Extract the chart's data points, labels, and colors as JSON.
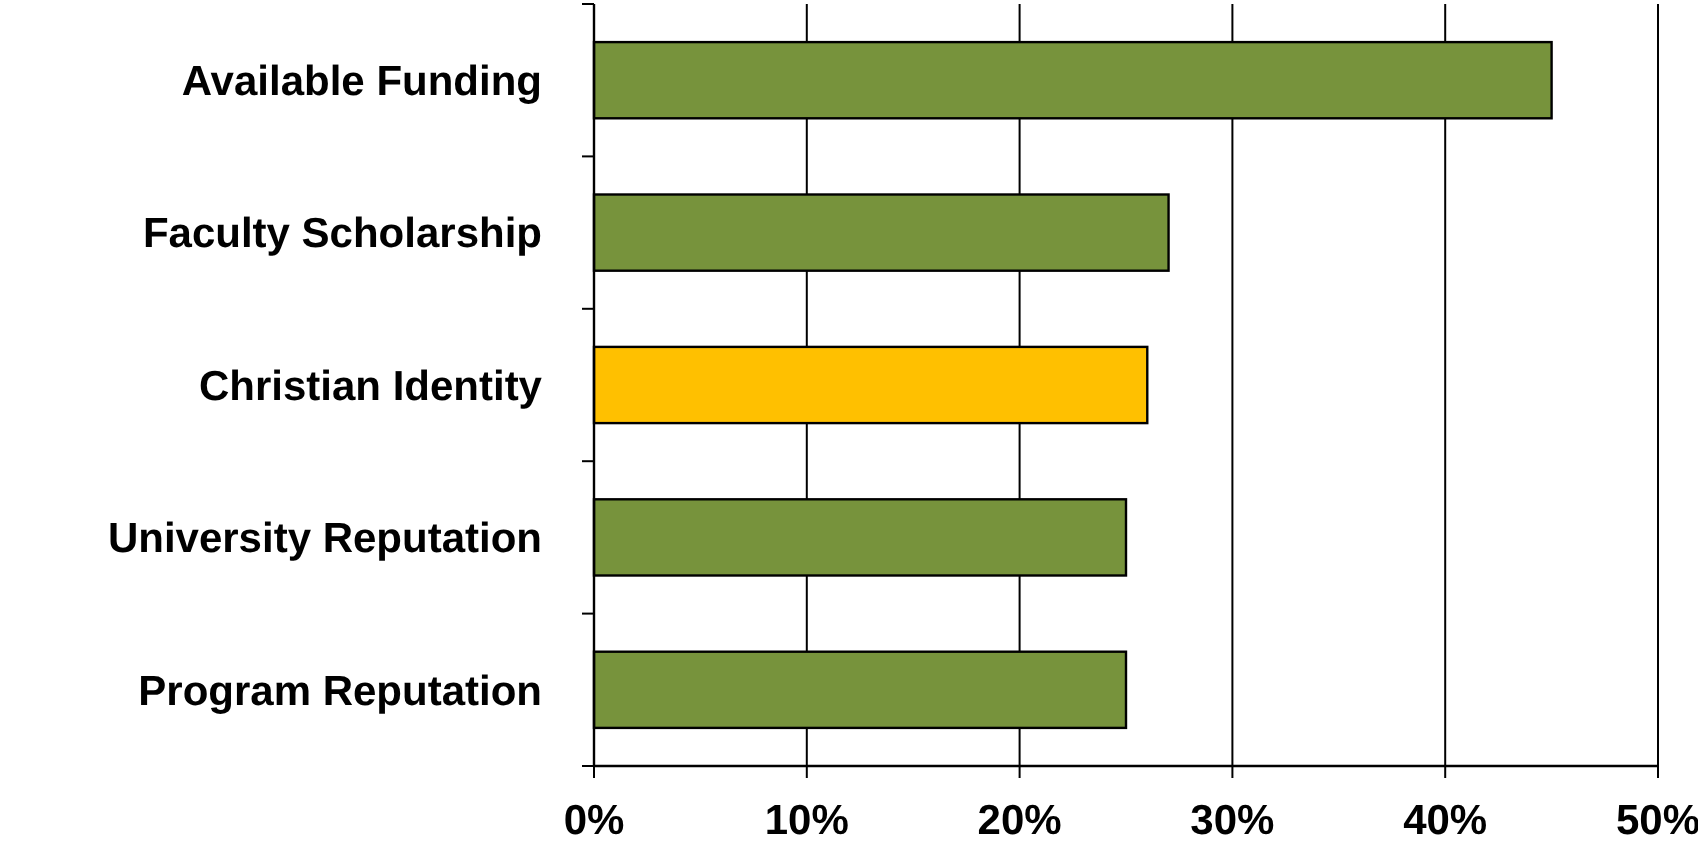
{
  "chart_data": {
    "type": "bar",
    "orientation": "horizontal",
    "categories": [
      "Available Funding",
      "Faculty Scholarship",
      "Christian Identity",
      "University Reputation",
      "Program Reputation"
    ],
    "values": [
      45,
      27,
      26,
      25,
      25
    ],
    "colors": [
      "#77933c",
      "#77933c",
      "#ffc000",
      "#77933c",
      "#77933c"
    ],
    "xlim": [
      0,
      50
    ],
    "xticks": [
      {
        "value": 0,
        "label": "0%"
      },
      {
        "value": 10,
        "label": "10%"
      },
      {
        "value": 20,
        "label": "20%"
      },
      {
        "value": 30,
        "label": "30%"
      },
      {
        "value": 40,
        "label": "40%"
      },
      {
        "value": 50,
        "label": "50%"
      }
    ],
    "grid": "x"
  }
}
